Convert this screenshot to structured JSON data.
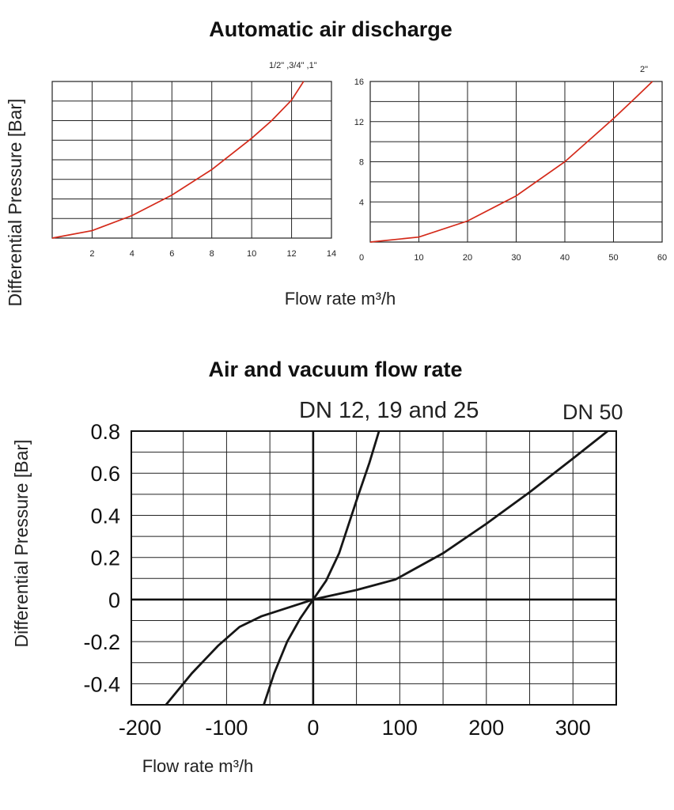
{
  "page": {
    "title_top": "Automatic air discharge",
    "title_bottom": "Air and vacuum flow rate"
  },
  "chart_data": [
    {
      "type": "line",
      "title": "Automatic air discharge",
      "xlabel": "Flow rate m³/h",
      "ylabel": "Differential Pressure [Bar]",
      "xlim": [
        0,
        14
      ],
      "ylim": [
        0,
        8
      ],
      "grid": true,
      "x_ticks": [
        "2",
        "4",
        "6",
        "8",
        "10",
        "12",
        "14"
      ],
      "y_ticks": [],
      "series": [
        {
          "name": "1/2\" ,3/4\" ,1\"",
          "color": "#d42a1a",
          "x": [
            0,
            2,
            4,
            6,
            8,
            10,
            11,
            12,
            12.6
          ],
          "y": [
            0,
            0.38,
            1.15,
            2.2,
            3.5,
            5.1,
            6.0,
            7.05,
            8.0
          ]
        }
      ]
    },
    {
      "type": "line",
      "xlabel": "Flow rate m³/h",
      "ylabel": "Differential Pressure [Bar]",
      "xlim": [
        0,
        60
      ],
      "ylim": [
        0,
        16
      ],
      "grid": true,
      "x_ticks": [
        "0",
        "10",
        "20",
        "30",
        "40",
        "50",
        "60"
      ],
      "y_ticks": [
        "4",
        "8",
        "12",
        "16"
      ],
      "series": [
        {
          "name": "2\"",
          "color": "#d42a1a",
          "x": [
            0,
            10,
            20,
            30,
            40,
            50,
            55,
            58
          ],
          "y": [
            0,
            0.5,
            2.1,
            4.6,
            8.0,
            12.3,
            14.6,
            16.0
          ]
        }
      ]
    },
    {
      "type": "line",
      "title": "Air and vacuum flow rate",
      "xlabel": "Flow rate m³/h",
      "ylabel": "Differential Pressure [Bar]",
      "xlim": [
        -210,
        350
      ],
      "ylim": [
        -0.5,
        0.8
      ],
      "grid": true,
      "x_ticks": [
        "-200",
        "-100",
        "0",
        "100",
        "200",
        "300"
      ],
      "y_ticks": [
        "0.8",
        "0.6",
        "0.4",
        "0.2",
        "0",
        "-0.2",
        "-0.4"
      ],
      "series": [
        {
          "name": "DN 12, 19 and 25",
          "color": "#161616",
          "x": [
            -57,
            -45,
            -30,
            -15,
            0,
            15,
            30,
            50,
            65,
            76
          ],
          "y": [
            -0.5,
            -0.35,
            -0.2,
            -0.09,
            0,
            0.09,
            0.22,
            0.47,
            0.65,
            0.8
          ]
        },
        {
          "name": "DN 50",
          "color": "#161616",
          "x": [
            -170,
            -140,
            -110,
            -85,
            -60,
            -30,
            0,
            50,
            95,
            150,
            200,
            250,
            300,
            340
          ],
          "y": [
            -0.5,
            -0.35,
            -0.22,
            -0.13,
            -0.08,
            -0.04,
            0,
            0.045,
            0.095,
            0.22,
            0.36,
            0.51,
            0.67,
            0.8
          ]
        }
      ]
    }
  ]
}
